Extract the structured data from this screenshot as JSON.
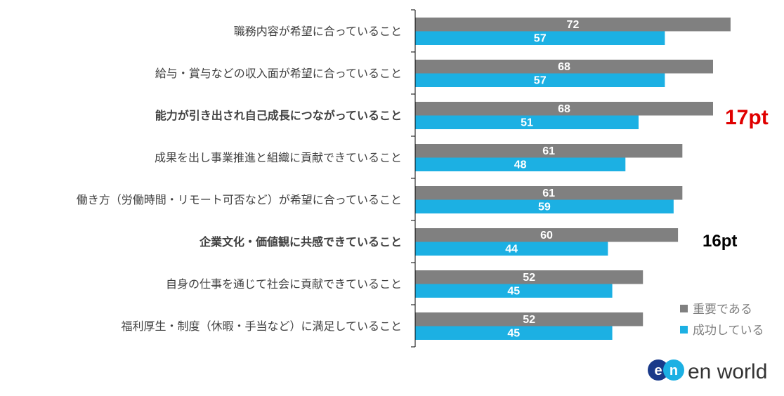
{
  "chart_data": {
    "type": "bar",
    "orientation": "horizontal",
    "categories": [
      "職務内容が希望に合っていること",
      "給与・賞与などの収入面が希望に合っていること",
      "能力が引き出され自己成長につながっていること",
      "成果を出し事業推進と組織に貢献できていること",
      "働き方（労働時間・リモート可否など）が希望に合っていること",
      "企業文化・価値観に共感できていること",
      "自身の仕事を通じて社会に貢献できていること",
      "福利厚生・制度（休暇・手当など）に満足していること"
    ],
    "series": [
      {
        "name": "重要である",
        "color": "#808080",
        "values": [
          72,
          68,
          68,
          61,
          61,
          60,
          52,
          52
        ]
      },
      {
        "name": "成功している",
        "color": "#1cb0e3",
        "values": [
          57,
          57,
          51,
          48,
          59,
          44,
          45,
          45
        ]
      }
    ],
    "highlighted_categories": [
      {
        "index": 2,
        "color": "#e00000"
      },
      {
        "index": 5,
        "color": "#000000"
      }
    ],
    "annotations": [
      {
        "category_index": 2,
        "text": "17pt",
        "color": "#e00000"
      },
      {
        "category_index": 5,
        "text": "16pt",
        "color": "#000000"
      }
    ],
    "xlim": [
      0,
      80
    ],
    "grid": false,
    "legend": "bottom-right",
    "data_labels": true
  },
  "logo": {
    "text": "en world"
  }
}
